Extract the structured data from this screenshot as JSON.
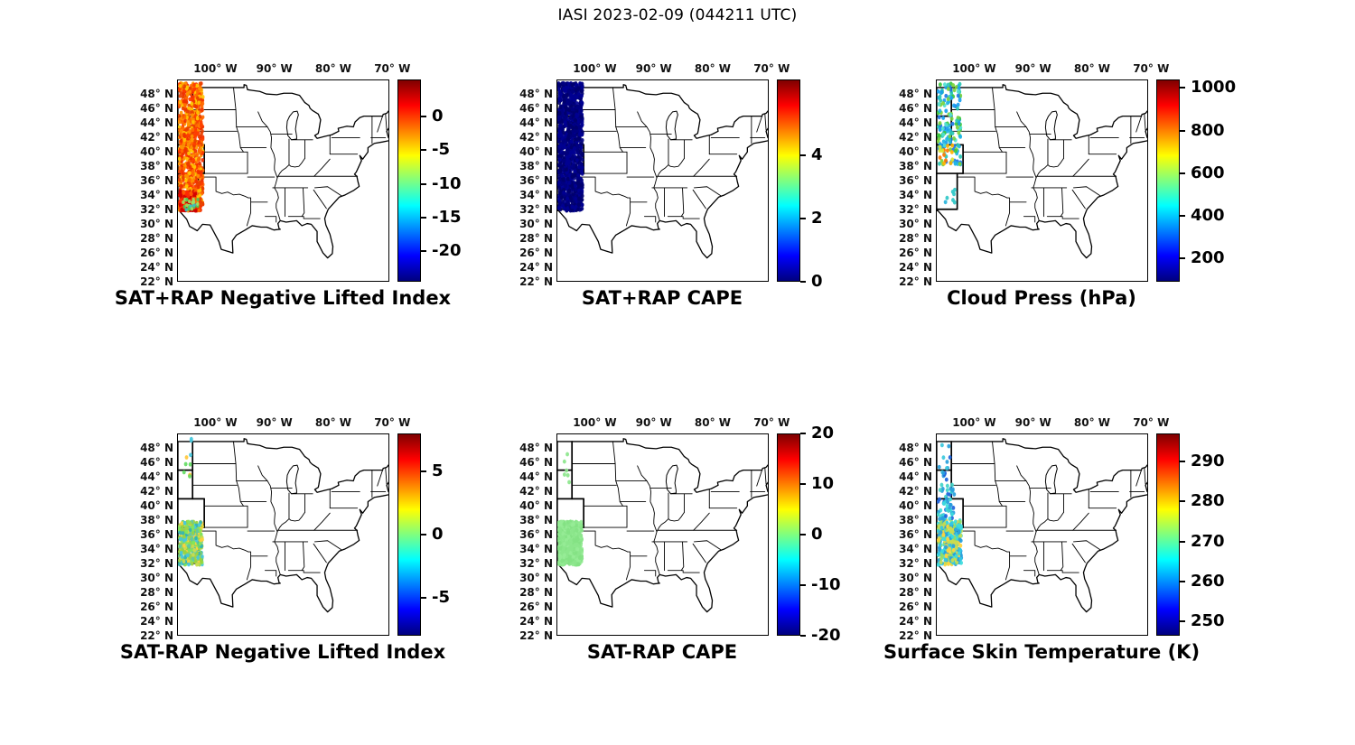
{
  "title": "IASI 2023-02-09 (044211 UTC)",
  "map": {
    "lon_labels": [
      "100° W",
      "90° W",
      "80° W",
      "70° W"
    ],
    "lon_values": [
      -100,
      -90,
      -80,
      -70
    ],
    "lat_labels": [
      "48° N",
      "46° N",
      "44° N",
      "42° N",
      "40° N",
      "38° N",
      "36° N",
      "34° N",
      "32° N",
      "30° N",
      "28° N",
      "26° N",
      "24° N",
      "22° N"
    ],
    "lat_values": [
      48,
      46,
      44,
      42,
      40,
      38,
      36,
      34,
      32,
      30,
      28,
      26,
      24,
      22
    ],
    "lon_range": [
      -106.5,
      -70.5
    ],
    "lat_range": [
      22,
      50
    ]
  },
  "chart_data": [
    {
      "id": "sat-plus-rap-negative-lifted-index",
      "type": "map-scatter",
      "title": "SAT+RAP Negative Lifted Index",
      "colorbar": {
        "colormap": "jet",
        "max": 5.5,
        "min": -24.5,
        "ticks": [
          0,
          -5,
          -10,
          -15,
          -20
        ],
        "tick_labels": [
          "0",
          "-5",
          "-10",
          "-15",
          "-20"
        ]
      },
      "summary": "Dense IASI swath along ~106W-102W from 50N to 32N; lifted index mostly 0 to -4 (orange/red), isolated -10 to -15 (green/cyan) near 32-34N",
      "swaths": [
        {
          "lon": [
            -106.3,
            -102.2
          ],
          "lat": [
            31.8,
            49.6
          ],
          "n": 900,
          "r": 2.8,
          "colors": [
            "#ff6a00",
            "#ff3c00",
            "#ff9400",
            "#ffc800",
            "#f03000",
            "#e84000"
          ]
        },
        {
          "lon": [
            -106.2,
            -103.4
          ],
          "lat": [
            31.8,
            34.6
          ],
          "n": 160,
          "r": 2.8,
          "colors": [
            "#d80000",
            "#ff2a00",
            "#c80000",
            "#ff5a00"
          ]
        },
        {
          "lon": [
            -105.6,
            -103.0
          ],
          "lat": [
            31.8,
            33.4
          ],
          "n": 26,
          "r": 2.6,
          "colors": [
            "#50c850",
            "#30c8c8",
            "#a0e060"
          ]
        }
      ]
    },
    {
      "id": "sat-plus-rap-cape",
      "type": "map-scatter",
      "title": "SAT+RAP CAPE",
      "colorbar": {
        "colormap": "jet",
        "max": 6.4,
        "min": 0,
        "ticks": [
          4,
          2,
          0
        ],
        "tick_labels": [
          "4",
          "2",
          "0"
        ]
      },
      "summary": "CAPE approximately 0 J/kg (dark blue) across the entire swath 32N-50N near 104W",
      "swaths": [
        {
          "lon": [
            -106.3,
            -102.2
          ],
          "lat": [
            31.8,
            49.6
          ],
          "n": 1150,
          "r": 3.0,
          "colors": [
            "#000080",
            "#000092",
            "#00006e"
          ]
        }
      ]
    },
    {
      "id": "cloud-press",
      "type": "map-scatter",
      "title": "Cloud Press (hPa)",
      "colorbar": {
        "colormap": "jet",
        "max": 1040,
        "min": 90,
        "ticks": [
          1000,
          800,
          600,
          400,
          200
        ],
        "tick_labels": [
          "1000",
          "800",
          "600",
          "400",
          "200"
        ]
      },
      "summary": "Cloud-top pressures mostly 300-600 hPa (blue/cyan/green) north of 38N, few 700-900 hPa points near 38-41N",
      "swaths": [
        {
          "lon": [
            -106.3,
            -102.4
          ],
          "lat": [
            38.0,
            49.6
          ],
          "n": 150,
          "r": 3.0,
          "colors": [
            "#20b4e6",
            "#28c8b4",
            "#3cc83c",
            "#1e78e6",
            "#50e0d2",
            "#78d23c",
            "#18a0f0"
          ]
        },
        {
          "lon": [
            -106.0,
            -103.8
          ],
          "lat": [
            38.2,
            41.5
          ],
          "n": 14,
          "r": 3.0,
          "colors": [
            "#ffb400",
            "#ff7800",
            "#dce632"
          ]
        },
        {
          "lon": [
            -105.6,
            -103.4
          ],
          "lat": [
            32.4,
            34.8
          ],
          "n": 7,
          "r": 3.0,
          "colors": [
            "#28b4dc",
            "#30c8c8"
          ]
        }
      ]
    },
    {
      "id": "sat-minus-rap-negative-lifted-index",
      "type": "map-scatter",
      "title": "SAT-RAP Negative Lifted Index",
      "colorbar": {
        "colormap": "jet",
        "max": 8,
        "min": -8,
        "ticks": [
          5,
          0,
          -5
        ],
        "tick_labels": [
          "5",
          "0",
          "-5"
        ]
      },
      "summary": "SAT minus RAP lifted-index differences mostly -2 to +2 over a 32N-38N cluster; few scattered points 43N-49N",
      "swaths": [
        {
          "lon": [
            -106.3,
            -102.3
          ],
          "lat": [
            31.8,
            37.8
          ],
          "n": 420,
          "r": 2.8,
          "colors": [
            "#c8dc50",
            "#a0d24a",
            "#64c8a0",
            "#46c8dc",
            "#ffd23c",
            "#82e65a",
            "#32b4b4",
            "#9ad23c"
          ]
        },
        {
          "lon": [
            -106.2,
            -104.0
          ],
          "lat": [
            43.0,
            49.5
          ],
          "n": 10,
          "r": 3.0,
          "colors": [
            "#46c8dc",
            "#64dc64",
            "#ffc83c"
          ]
        }
      ]
    },
    {
      "id": "sat-minus-rap-cape",
      "type": "map-scatter",
      "title": "SAT-RAP CAPE",
      "colorbar": {
        "colormap": "jet",
        "max": 20,
        "min": -20,
        "ticks": [
          20,
          10,
          0,
          -10,
          -20
        ],
        "tick_labels": [
          "20",
          "10",
          "0",
          "-10",
          "-20"
        ]
      },
      "summary": "SAT minus RAP CAPE difference approximately 0 J/kg (uniform green patch) over 32N-38N; few green points north",
      "swaths": [
        {
          "lon": [
            -106.3,
            -102.3
          ],
          "lat": [
            31.8,
            37.8
          ],
          "n": 520,
          "r": 3.0,
          "colors": [
            "#8ce68c",
            "#84e284",
            "#96ec96"
          ]
        },
        {
          "lon": [
            -106.0,
            -104.4
          ],
          "lat": [
            43.0,
            48.6
          ],
          "n": 6,
          "r": 3.0,
          "colors": [
            "#8ce68c"
          ]
        }
      ]
    },
    {
      "id": "surface-skin-temperature",
      "type": "map-scatter",
      "title": "Surface Skin Temperature (K)",
      "colorbar": {
        "colormap": "jet",
        "max": 297,
        "min": 246.5,
        "ticks": [
          290,
          280,
          270,
          260,
          250
        ],
        "tick_labels": [
          "290",
          "280",
          "270",
          "260",
          "250"
        ]
      },
      "summary": "Skin temperatures roughly 258-285 K along swath: cooler blues north of 38N, cyan/green/yellow 265-285 K over 32N-38N",
      "swaths": [
        {
          "lon": [
            -106.3,
            -102.3
          ],
          "lat": [
            31.8,
            38.0
          ],
          "n": 320,
          "r": 3.0,
          "colors": [
            "#3cdcdc",
            "#32c8e6",
            "#96dc64",
            "#c8dc50",
            "#ffd23c",
            "#28a0dc"
          ]
        },
        {
          "lon": [
            -106.3,
            -103.5
          ],
          "lat": [
            38.0,
            43.0
          ],
          "n": 55,
          "r": 3.0,
          "colors": [
            "#28a0dc",
            "#3cdcdc",
            "#1e64dc",
            "#40d2c8"
          ]
        },
        {
          "lon": [
            -106.2,
            -104.0
          ],
          "lat": [
            43.0,
            49.5
          ],
          "n": 14,
          "r": 3.0,
          "colors": [
            "#1e64dc",
            "#28a0dc",
            "#3cc8dc"
          ]
        }
      ]
    }
  ]
}
